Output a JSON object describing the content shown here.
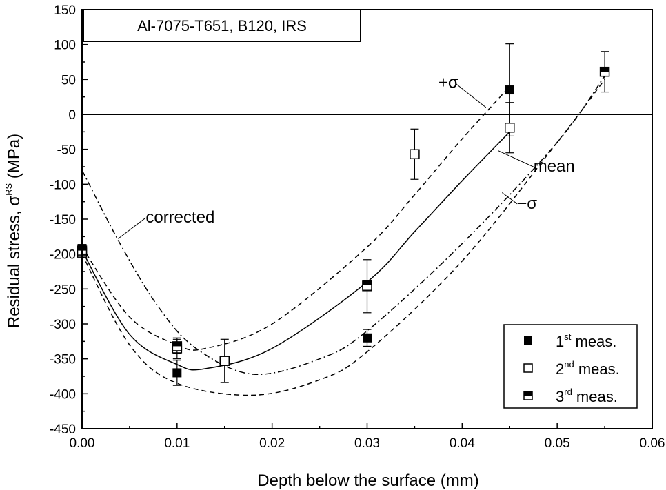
{
  "chart_data": {
    "type": "scatter",
    "title": "Al-7075-T651, B120, IRS",
    "xlabel": "Depth below the surface (mm)",
    "ylabel": {
      "main": "Residual stress, σ",
      "sup": "RS",
      "unit": " (MPa)"
    },
    "xlim": [
      0.0,
      0.06
    ],
    "ylim": [
      -450,
      150
    ],
    "xticks": [
      0.0,
      0.01,
      0.02,
      0.03,
      0.04,
      0.05,
      0.06
    ],
    "xtick_labels": [
      "0.00",
      "0.01",
      "0.02",
      "0.03",
      "0.04",
      "0.05",
      "0.06"
    ],
    "yticks": [
      150,
      100,
      50,
      0,
      -50,
      -100,
      -150,
      -200,
      -250,
      -300,
      -350,
      -400,
      -450
    ],
    "ytick_labels": [
      "150",
      "100",
      "50",
      "0",
      "-50",
      "-100",
      "-150",
      "-200",
      "-250",
      "-300",
      "-350",
      "-400",
      "-450"
    ],
    "zero_line": true,
    "grid": false,
    "legend_position": "bottom-right",
    "series": [
      {
        "name": "1st meas.",
        "label_base": "1",
        "label_sup": "st",
        "label_tail": " meas.",
        "marker": "filled-square",
        "x": [
          0.0,
          0.01,
          0.03,
          0.045
        ],
        "y": [
          -192,
          -370,
          -320,
          35
        ],
        "err": [
          null,
          18,
          12,
          66
        ]
      },
      {
        "name": "2nd meas.",
        "label_base": "2",
        "label_sup": "nd",
        "label_tail": " meas.",
        "marker": "open-square",
        "x": [
          0.0,
          0.01,
          0.015,
          0.03,
          0.035,
          0.045
        ],
        "y": [
          -198,
          -335,
          -353,
          -246,
          -57,
          -19
        ],
        "err": [
          null,
          15,
          31,
          38,
          36,
          36
        ]
      },
      {
        "name": "3rd meas.",
        "label_base": "3",
        "label_sup": "rd",
        "label_tail": " meas.",
        "marker": "half-square",
        "x": [
          0.0,
          0.01,
          0.03,
          0.055
        ],
        "y": [
          -195,
          -332,
          -244,
          61
        ],
        "err": [
          null,
          10,
          0,
          29
        ]
      }
    ],
    "curves": [
      {
        "name": "mean",
        "style": "solid",
        "x": [
          0.0,
          0.005,
          0.01,
          0.013,
          0.02,
          0.03,
          0.035,
          0.04,
          0.045
        ],
        "y": [
          -195,
          -315,
          -358,
          -364,
          -335,
          -240,
          -168,
          -95,
          -25
        ]
      },
      {
        "name": "+σ",
        "style": "dashed",
        "x": [
          0.0,
          0.005,
          0.01,
          0.013,
          0.02,
          0.03,
          0.035,
          0.04,
          0.045
        ],
        "y": [
          -190,
          -290,
          -330,
          -335,
          -300,
          -190,
          -115,
          -35,
          40
        ]
      },
      {
        "name": "−σ",
        "style": "dashed",
        "x": [
          0.0,
          0.005,
          0.01,
          0.018,
          0.025,
          0.03,
          0.04,
          0.05,
          0.055
        ],
        "y": [
          -200,
          -330,
          -385,
          -402,
          -380,
          -340,
          -210,
          -40,
          50
        ]
      },
      {
        "name": "corrected",
        "style": "dashdot",
        "x": [
          0.0,
          0.004,
          0.008,
          0.012,
          0.018,
          0.025,
          0.03,
          0.04,
          0.05,
          0.055
        ],
        "y": [
          -80,
          -185,
          -275,
          -335,
          -372,
          -350,
          -310,
          -185,
          -40,
          55
        ]
      }
    ],
    "annotations": [
      {
        "text": "+σ",
        "x": 0.0375,
        "y": 38,
        "leader_to": [
          0.0425,
          10
        ]
      },
      {
        "text": "mean",
        "x": 0.0475,
        "y": -82,
        "leader_to": [
          0.0438,
          -52
        ]
      },
      {
        "text": "−σ",
        "x": 0.0458,
        "y": -135,
        "leader_to": [
          0.0442,
          -112
        ]
      },
      {
        "text": "corrected",
        "x": 0.0067,
        "y": -155,
        "leader_to": [
          0.0038,
          -178
        ]
      }
    ]
  }
}
